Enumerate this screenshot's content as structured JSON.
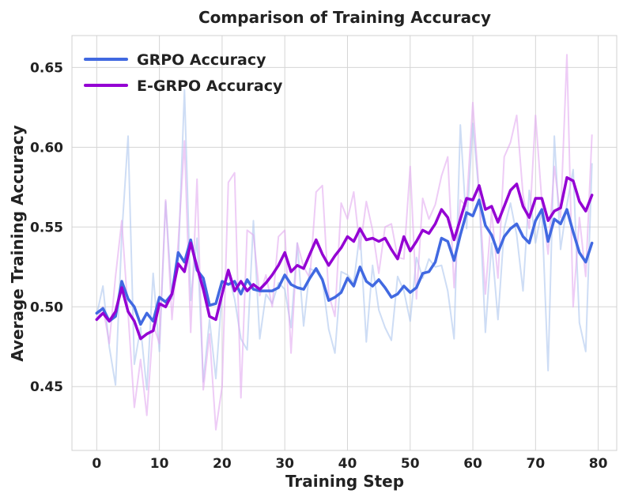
{
  "chart_data": {
    "type": "line",
    "title": "Comparison of Training Accuracy",
    "xlabel": "Training Step",
    "ylabel": "Average Training Accuracy",
    "xlim": [
      -3.95,
      82.95
    ],
    "ylim": [
      0.41,
      0.67
    ],
    "xticks": [
      0,
      10,
      20,
      30,
      40,
      50,
      60,
      70,
      80
    ],
    "yticks": [
      0.45,
      0.5,
      0.55,
      0.6,
      0.65
    ],
    "ytick_labels": [
      "0.45",
      "0.50",
      "0.55",
      "0.60",
      "0.65"
    ],
    "grid": true,
    "legend_position": "top-left",
    "series": [
      {
        "name": "GRPO Accuracy",
        "color": "#4169e1",
        "raw_color": "#aec6ef",
        "smoothed": [
          0.496,
          0.499,
          0.491,
          0.494,
          0.516,
          0.505,
          0.5,
          0.489,
          0.496,
          0.491,
          0.506,
          0.503,
          0.508,
          0.534,
          0.528,
          0.542,
          0.523,
          0.518,
          0.501,
          0.502,
          0.516,
          0.514,
          0.516,
          0.508,
          0.517,
          0.511,
          0.51,
          0.51,
          0.51,
          0.512,
          0.52,
          0.514,
          0.512,
          0.511,
          0.518,
          0.524,
          0.517,
          0.504,
          0.506,
          0.509,
          0.518,
          0.513,
          0.525,
          0.516,
          0.513,
          0.517,
          0.512,
          0.506,
          0.508,
          0.513,
          0.509,
          0.512,
          0.521,
          0.522,
          0.528,
          0.543,
          0.541,
          0.529,
          0.545,
          0.559,
          0.557,
          0.567,
          0.551,
          0.545,
          0.534,
          0.544,
          0.549,
          0.552,
          0.544,
          0.54,
          0.554,
          0.561,
          0.541,
          0.555,
          0.552,
          0.561,
          0.547,
          0.534,
          0.528,
          0.54
        ],
        "raw": [
          0.495,
          0.513,
          0.475,
          0.451,
          0.545,
          0.607,
          0.464,
          0.487,
          0.448,
          0.521,
          0.472,
          0.566,
          0.505,
          0.528,
          0.636,
          0.504,
          0.543,
          0.453,
          0.492,
          0.455,
          0.51,
          0.52,
          0.505,
          0.48,
          0.473,
          0.554,
          0.48,
          0.508,
          0.502,
          0.515,
          0.511,
          0.487,
          0.54,
          0.488,
          0.524,
          0.522,
          0.517,
          0.486,
          0.471,
          0.522,
          0.52,
          0.515,
          0.547,
          0.478,
          0.526,
          0.498,
          0.487,
          0.479,
          0.519,
          0.51,
          0.491,
          0.531,
          0.518,
          0.53,
          0.525,
          0.526,
          0.51,
          0.48,
          0.614,
          0.549,
          0.615,
          0.57,
          0.484,
          0.54,
          0.492,
          0.549,
          0.565,
          0.545,
          0.51,
          0.573,
          0.54,
          0.561,
          0.46,
          0.607,
          0.536,
          0.564,
          0.586,
          0.49,
          0.472,
          0.59
        ]
      },
      {
        "name": "E-GRPO Accuracy",
        "color": "#9400d3",
        "raw_color": "#e2aaf0",
        "smoothed": [
          0.492,
          0.496,
          0.491,
          0.497,
          0.512,
          0.497,
          0.491,
          0.48,
          0.483,
          0.485,
          0.502,
          0.5,
          0.508,
          0.527,
          0.522,
          0.54,
          0.525,
          0.511,
          0.494,
          0.492,
          0.508,
          0.523,
          0.51,
          0.516,
          0.51,
          0.514,
          0.511,
          0.515,
          0.52,
          0.526,
          0.534,
          0.522,
          0.526,
          0.524,
          0.533,
          0.542,
          0.533,
          0.526,
          0.532,
          0.537,
          0.544,
          0.541,
          0.549,
          0.542,
          0.543,
          0.541,
          0.543,
          0.536,
          0.53,
          0.544,
          0.535,
          0.541,
          0.548,
          0.546,
          0.552,
          0.561,
          0.556,
          0.542,
          0.555,
          0.568,
          0.567,
          0.576,
          0.561,
          0.563,
          0.553,
          0.563,
          0.573,
          0.577,
          0.563,
          0.556,
          0.568,
          0.568,
          0.554,
          0.56,
          0.562,
          0.581,
          0.579,
          0.566,
          0.56,
          0.57
        ],
        "raw": [
          0.492,
          0.5,
          0.477,
          0.519,
          0.554,
          0.496,
          0.437,
          0.467,
          0.432,
          0.489,
          0.477,
          0.567,
          0.492,
          0.54,
          0.604,
          0.484,
          0.58,
          0.448,
          0.483,
          0.423,
          0.45,
          0.578,
          0.584,
          0.443,
          0.548,
          0.545,
          0.507,
          0.52,
          0.5,
          0.544,
          0.548,
          0.471,
          0.54,
          0.525,
          0.518,
          0.572,
          0.576,
          0.508,
          0.494,
          0.565,
          0.555,
          0.572,
          0.536,
          0.566,
          0.548,
          0.521,
          0.55,
          0.552,
          0.531,
          0.53,
          0.588,
          0.505,
          0.568,
          0.555,
          0.564,
          0.582,
          0.594,
          0.512,
          0.567,
          0.563,
          0.628,
          0.571,
          0.508,
          0.56,
          0.518,
          0.594,
          0.603,
          0.62,
          0.57,
          0.549,
          0.62,
          0.566,
          0.533,
          0.588,
          0.556,
          0.658,
          0.5,
          0.556,
          0.519,
          0.608
        ]
      }
    ]
  }
}
